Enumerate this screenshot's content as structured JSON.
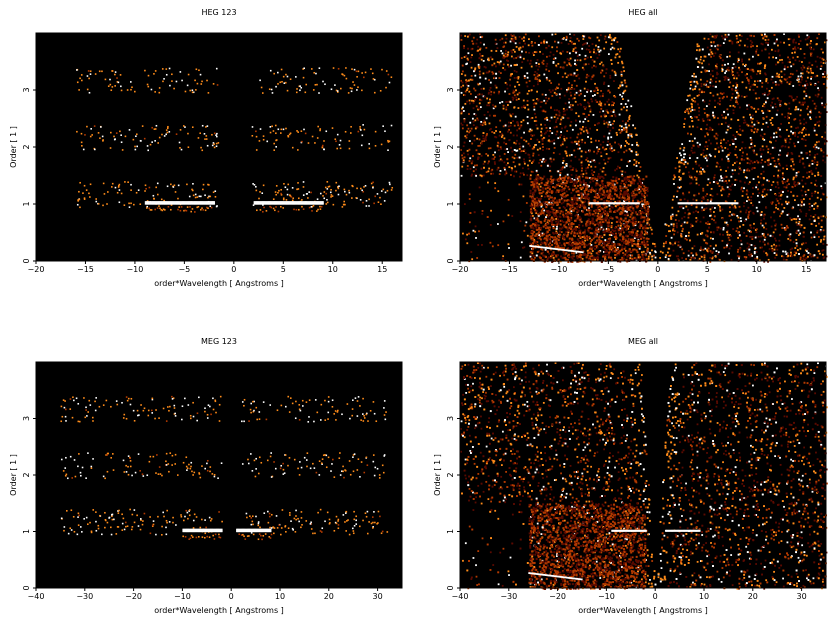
{
  "chart_data": [
    {
      "type": "heatmap",
      "title": "HEG 123",
      "xlabel": "order*Wavelength [ Angstroms ]",
      "ylabel": "Order [ 1 ]",
      "xlim": [
        -20,
        17
      ],
      "ylim": [
        0,
        4
      ],
      "xticks": [
        -20,
        -15,
        -10,
        -5,
        0,
        5,
        10,
        15
      ],
      "yticks": [
        0,
        1,
        2,
        3
      ],
      "background": "#000000",
      "colormap": [
        "#000000",
        "#5a0a00",
        "#b33a00",
        "#ff8c1a",
        "#ffffff"
      ],
      "bands": [
        {
          "order": 1,
          "x_range": [
            -16,
            16
          ],
          "gap": [
            -1.5,
            1.5
          ],
          "bright_ranges": [
            [
              -9,
              -2
            ],
            [
              2,
              9
            ]
          ]
        },
        {
          "order": 2,
          "x_range": [
            -16,
            16
          ],
          "gap": [
            -1.5,
            1.5
          ]
        },
        {
          "order": 3,
          "x_range": [
            -16,
            16
          ],
          "gap": [
            -1.5,
            2.5
          ]
        }
      ]
    },
    {
      "type": "heatmap",
      "title": "HEG all",
      "xlabel": "order*Wavelength [ Angstroms ]",
      "ylabel": "Order [ 1 ]",
      "xlim": [
        -20,
        17
      ],
      "ylim": [
        0,
        4
      ],
      "xticks": [
        -20,
        -15,
        -10,
        -5,
        0,
        5,
        10,
        15
      ],
      "yticks": [
        0,
        1,
        2,
        3
      ],
      "background": "#000000",
      "colormap": [
        "#000000",
        "#5a0a00",
        "#b33a00",
        "#ff8c1a",
        "#ffffff"
      ],
      "features": {
        "wedge_apex_x": 0,
        "wedge_top_x": [
          -4,
          4
        ],
        "order1_line": {
          "y": 1,
          "ranges": [
            [
              -7,
              -2
            ],
            [
              2,
              8
            ]
          ]
        },
        "dark_block": {
          "x_range": [
            -13,
            -1
          ],
          "y_range": [
            0,
            1.5
          ]
        }
      }
    },
    {
      "type": "heatmap",
      "title": "MEG 123",
      "xlabel": "order*Wavelength [ Angstroms ]",
      "ylabel": "Order [ 1 ]",
      "xlim": [
        -40,
        35
      ],
      "ylim": [
        0,
        4
      ],
      "xticks": [
        -40,
        -30,
        -20,
        -10,
        0,
        10,
        20,
        30
      ],
      "yticks": [
        0,
        1,
        2,
        3
      ],
      "background": "#000000",
      "colormap": [
        "#000000",
        "#5a0a00",
        "#b33a00",
        "#ff8c1a",
        "#ffffff"
      ],
      "bands": [
        {
          "order": 1,
          "x_range": [
            -35,
            32
          ],
          "gap": [
            -2,
            2
          ],
          "bright_ranges": [
            [
              -10,
              -2
            ],
            [
              1,
              8
            ]
          ]
        },
        {
          "order": 2,
          "x_range": [
            -35,
            32
          ],
          "gap": [
            -2,
            2
          ]
        },
        {
          "order": 3,
          "x_range": [
            -35,
            32
          ],
          "gap": [
            -2,
            2
          ]
        }
      ]
    },
    {
      "type": "heatmap",
      "title": "MEG all",
      "xlabel": "order*Wavelength [ Angstroms ]",
      "ylabel": "Order [ 1 ]",
      "xlim": [
        -40,
        35
      ],
      "ylim": [
        0,
        4
      ],
      "xticks": [
        -40,
        -30,
        -20,
        -10,
        0,
        10,
        20,
        30
      ],
      "yticks": [
        0,
        1,
        2,
        3
      ],
      "background": "#000000",
      "colormap": [
        "#000000",
        "#5a0a00",
        "#b33a00",
        "#ff8c1a",
        "#ffffff"
      ],
      "features": {
        "wedge_apex_x": 0,
        "wedge_top_x": [
          -3,
          3
        ],
        "order1_line": {
          "y": 1,
          "ranges": [
            [
              -9,
              -2
            ],
            [
              2,
              9
            ]
          ]
        },
        "dark_block": {
          "x_range": [
            -26,
            -2
          ],
          "y_range": [
            0,
            1.5
          ]
        }
      }
    }
  ]
}
